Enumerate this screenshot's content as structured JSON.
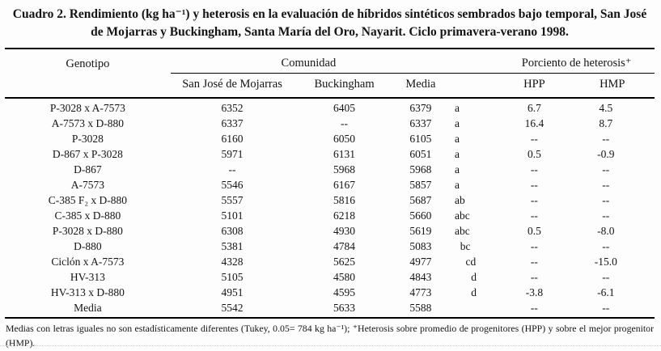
{
  "title": "Cuadro 2. Rendimiento (kg ha⁻¹) y heterosis en la evaluación de híbridos sintéticos sembrados bajo temporal, San José de Mojarras y Buckingham, Santa María del Oro, Nayarit. Ciclo primavera-verano 1998.",
  "table": {
    "columns": {
      "genotipo": "Genotipo",
      "comunidad": "Comunidad",
      "heterosis": "Porciento de heterosis⁺",
      "sjm": "San José de Mojarras",
      "buck": "Buckingham",
      "media": "Media",
      "hpp": "HPP",
      "hmp": "HMP"
    },
    "rows": [
      {
        "genotipo": "P-3028 x A-7573",
        "sjm": "6352",
        "buck": "6405",
        "media": "6379",
        "tukey": "a",
        "hpp": "6.7",
        "hmp": "4.5"
      },
      {
        "genotipo": "A-7573 x D-880",
        "sjm": "6337",
        "buck": "--",
        "media": "6337",
        "tukey": "a",
        "hpp": "16.4",
        "hmp": "8.7"
      },
      {
        "genotipo": "P-3028",
        "sjm": "6160",
        "buck": "6050",
        "media": "6105",
        "tukey": "a",
        "hpp": "--",
        "hmp": "--"
      },
      {
        "genotipo": "D-867 x P-3028",
        "sjm": "5971",
        "buck": "6131",
        "media": "6051",
        "tukey": "a",
        "hpp": "0.5",
        "hmp": "-0.9"
      },
      {
        "genotipo": "D-867",
        "sjm": "--",
        "buck": "5968",
        "media": "5968",
        "tukey": "a",
        "hpp": "--",
        "hmp": "--"
      },
      {
        "genotipo": "A-7573",
        "sjm": "5546",
        "buck": "6167",
        "media": "5857",
        "tukey": "a",
        "hpp": "--",
        "hmp": "--"
      },
      {
        "genotipo": "C-385 F₂ x D-880",
        "sjm": "5557",
        "buck": "5816",
        "media": "5687",
        "tukey": "ab",
        "hpp": "--",
        "hmp": "--"
      },
      {
        "genotipo": "C-385 x D-880",
        "sjm": "5101",
        "buck": "6218",
        "media": "5660",
        "tukey": "abc",
        "hpp": "--",
        "hmp": "--"
      },
      {
        "genotipo": "P-3028 x D-880",
        "sjm": "6308",
        "buck": "4930",
        "media": "5619",
        "tukey": "abc",
        "hpp": "0.5",
        "hmp": "-8.0"
      },
      {
        "genotipo": "D-880",
        "sjm": "5381",
        "buck": "4784",
        "media": "5083",
        "tukey": "  bc",
        "hpp": "--",
        "hmp": "--"
      },
      {
        "genotipo": "Ciclón x A-7573",
        "sjm": "4328",
        "buck": "5625",
        "media": "4977",
        "tukey": "    cd",
        "hpp": "--",
        "hmp": "-15.0"
      },
      {
        "genotipo": "HV-313",
        "sjm": "5105",
        "buck": "4580",
        "media": "4843",
        "tukey": "      d",
        "hpp": "--",
        "hmp": "--"
      },
      {
        "genotipo": "HV-313 x D-880",
        "sjm": "4951",
        "buck": "4595",
        "media": "4773",
        "tukey": "      d",
        "hpp": "-3.8",
        "hmp": "-6.1"
      },
      {
        "genotipo": "Media",
        "sjm": "5542",
        "buck": "5633",
        "media": "5588",
        "tukey": "",
        "hpp": "--",
        "hmp": "--"
      }
    ]
  },
  "footnote": "Medias con letras iguales no son estadísticamente diferentes (Tukey, 0.05= 784 kg ha⁻¹); ⁺Heterosis sobre promedio de progenitores (HPP) y sobre el mejor progenitor (HMP)."
}
